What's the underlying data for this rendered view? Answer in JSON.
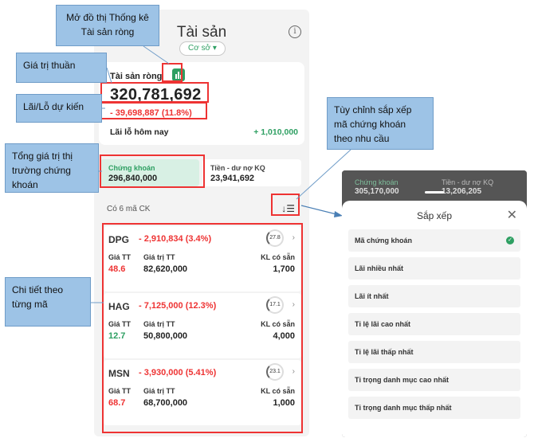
{
  "header": {
    "title": "Tài sản",
    "mode": "Cơ sở ▾",
    "info_glyph": "i"
  },
  "net_asset": {
    "label": "Tài sản ròng",
    "value": "320,781,692",
    "change": "- 39,698,887 (11.8%)",
    "today_label": "Lãi lỗ hôm nay",
    "today_value": "+ 1,010,000"
  },
  "tabs": [
    {
      "label": "Chứng khoán",
      "value": "296,840,000"
    },
    {
      "label": "Tiền - dư nợ KQ",
      "value": "23,941,692"
    }
  ],
  "list": {
    "count_label": "Có 6 mã CK",
    "sort_glyph": "↓☰"
  },
  "stocks": [
    {
      "code": "DPG",
      "change": "- 2,910,834 (3.4%)",
      "ring": "27.8",
      "price_label": "Giá TT",
      "price": "48.6",
      "price_color": "red",
      "mv_label": "Giá trị TT",
      "mv": "82,620,000",
      "qty_label": "KL có sẵn",
      "qty": "1,700"
    },
    {
      "code": "HAG",
      "change": "- 7,125,000 (12.3%)",
      "ring": "17.1",
      "price_label": "Giá TT",
      "price": "12.7",
      "price_color": "green",
      "mv_label": "Giá trị TT",
      "mv": "50,800,000",
      "qty_label": "KL có sẵn",
      "qty": "4,000"
    },
    {
      "code": "MSN",
      "change": "- 3,930,000 (5.41%)",
      "ring": "23.1",
      "price_label": "Giá TT",
      "price": "68.7",
      "price_color": "red",
      "mv_label": "Giá trị TT",
      "mv": "68,700,000",
      "qty_label": "KL có sẵn",
      "qty": "1,000"
    }
  ],
  "callouts": {
    "chart": "Mở đồ thị Thống kê Tài sản ròng",
    "net": "Giá trị thuần",
    "pl": "Lãi/Lỗ dự kiến",
    "total": "Tổng giá trị thị trường chứng khoán",
    "detail": "Chi tiết theo từng mã",
    "sort": "Tùy chỉnh sắp xếp mã chứng khoán theo nhu cầu"
  },
  "sort_sheet": {
    "bg_tab1_label": "Chứng khoán",
    "bg_tab1_value": "305,170,000",
    "bg_tab2_label": "Tiền - dư nợ KQ",
    "bg_tab2_value": "13,206,205",
    "title": "Sắp xếp",
    "close": "✕",
    "options": [
      "Mã chứng khoán",
      "Lãi nhiều nhất",
      "Lãi ít nhất",
      "Tỉ lệ lãi cao nhất",
      "Tỉ lệ lãi thấp nhất",
      "Tỉ trọng danh mục cao nhất",
      "Tỉ trọng danh mục thấp nhất"
    ],
    "selected_index": 0
  },
  "colors": {
    "accent": "#2e9f62",
    "loss": "#e33333",
    "callout": "#9dc3e6"
  }
}
